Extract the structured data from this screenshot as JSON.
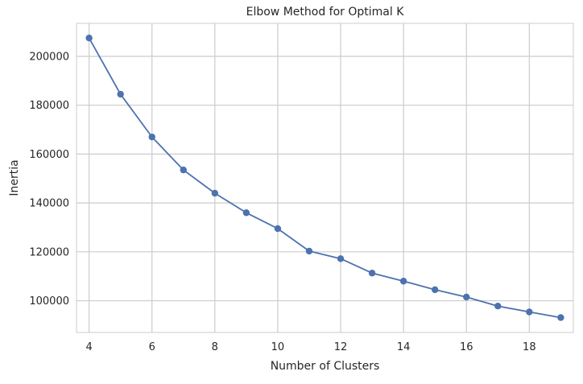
{
  "chart_data": {
    "type": "line",
    "title": "Elbow Method for Optimal K",
    "xlabel": "Number of Clusters",
    "ylabel": "Inertia",
    "x": [
      4,
      5,
      6,
      7,
      8,
      9,
      10,
      11,
      12,
      13,
      14,
      15,
      16,
      17,
      18,
      19
    ],
    "series": [
      {
        "values": [
          207500,
          184500,
          167000,
          153500,
          144000,
          136000,
          129500,
          120300,
          117200,
          111300,
          108000,
          104500,
          101500,
          97800,
          95400,
          93100
        ],
        "color": "#4c72b0",
        "marker": "circle"
      }
    ],
    "xlim": [
      3.6,
      19.4
    ],
    "ylim": [
      87000,
      213500
    ],
    "xticks": [
      4,
      6,
      8,
      10,
      12,
      14,
      16,
      18
    ],
    "yticks": [
      100000,
      120000,
      140000,
      160000,
      180000,
      200000
    ],
    "grid": true,
    "style": "whitegrid",
    "colors": {
      "grid": "#cccccc",
      "spine": "#cccccc",
      "text": "#262626"
    }
  }
}
